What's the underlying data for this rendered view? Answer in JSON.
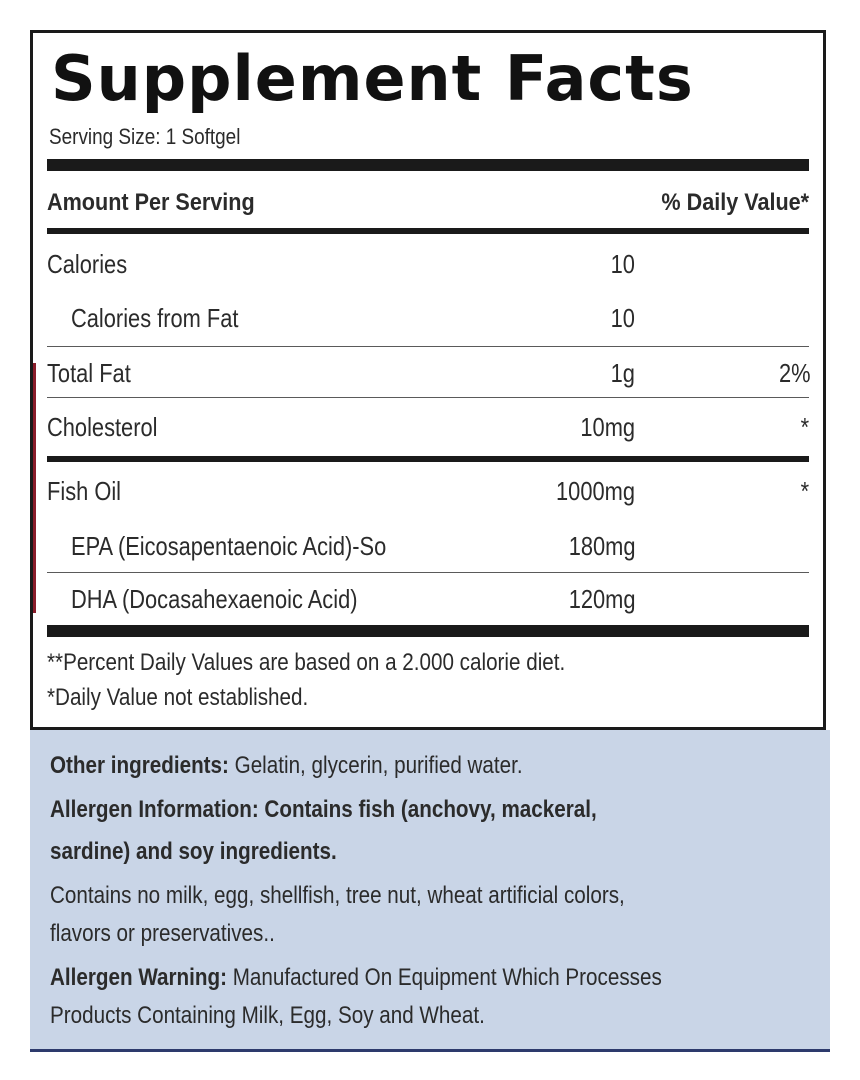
{
  "label": {
    "title": "Supplement Facts",
    "serving_size": "Serving Size: 1 Softgel",
    "header": {
      "amount_per_serving": "Amount Per Serving",
      "daily_value": "% Daily Value*"
    },
    "rows": [
      {
        "name": "Calories",
        "amount": "10",
        "dv": ""
      },
      {
        "name": "Calories from Fat",
        "amount": "10",
        "dv": ""
      },
      {
        "name": "Total Fat",
        "amount": "1g",
        "dv": "2%"
      },
      {
        "name": "Cholesterol",
        "amount": "10mg",
        "dv": "*"
      },
      {
        "name": "Fish Oil",
        "amount": "1000mg",
        "dv": "*"
      },
      {
        "name": "EPA (Eicosapentaenoic Acid)-So",
        "amount": "180mg",
        "dv": ""
      },
      {
        "name": "DHA (Docasahexaenoic Acid)",
        "amount": "120mg",
        "dv": ""
      }
    ],
    "footnotes": [
      "**Percent Daily Values are based on a 2.000 calorie diet.",
      "*Daily Value not established."
    ]
  },
  "info": {
    "other_ingredients_label": "Other ingredients:",
    "other_ingredients_text": "Gelatin, glycerin, purified water.",
    "allergen_info_line1": "Allergen Information: Contains fish (anchovy, mackeral,",
    "allergen_info_line2": "sardine) and soy ingredients.",
    "contains_no_line1": "Contains no milk, egg, shellfish, tree nut, wheat artificial colors,",
    "contains_no_line2": "flavors or preservatives..",
    "allergen_warning_label": "Allergen Warning:",
    "allergen_warning_text_line1": "Manufactured On Equipment Which Processes",
    "allergen_warning_text_line2": "Products Containing Milk, Egg, Soy and Wheat."
  },
  "colors": {
    "panel_border": "#1a1a1a",
    "info_background": "#c9d5e7",
    "info_bottom_border": "#2d3a6c",
    "text": "#2b2b2b"
  }
}
